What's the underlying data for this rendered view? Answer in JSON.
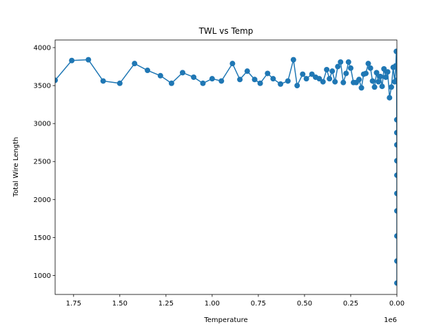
{
  "chart_data": {
    "type": "line",
    "title": "TWL vs Temp",
    "xlabel": "Temperature",
    "ylabel": "Total Wire Length",
    "x_offset_text": "1e6",
    "x_reversed": true,
    "xlim": [
      1850000,
      0
    ],
    "ylim": [
      750,
      4100
    ],
    "x_ticks": [
      1750000,
      1500000,
      1250000,
      1000000,
      750000,
      500000,
      250000,
      0
    ],
    "x_tick_labels": [
      "1.75",
      "1.50",
      "1.25",
      "1.00",
      "0.75",
      "0.50",
      "0.25",
      "0.00"
    ],
    "y_ticks": [
      1000,
      1500,
      2000,
      2500,
      3000,
      3500,
      4000
    ],
    "y_tick_labels": [
      "1000",
      "1500",
      "2000",
      "2500",
      "3000",
      "3500",
      "4000"
    ],
    "grid": false,
    "colors": {
      "series": "#1f77b4"
    },
    "series": [
      {
        "x": [
          1850000,
          1760000,
          1670000,
          1590000,
          1500000,
          1420000,
          1350000,
          1280000,
          1220000,
          1160000,
          1100000,
          1050000,
          1000000,
          950000,
          890000,
          850000,
          810000,
          770000,
          740000,
          700000,
          670000,
          630000,
          590000,
          560000,
          540000,
          510000,
          490000,
          460000,
          440000,
          420000,
          400000,
          380000,
          365000,
          350000,
          335000,
          320000,
          305000,
          290000,
          275000,
          262000,
          250000,
          235000,
          220000,
          205000,
          192000,
          180000,
          168000,
          155000,
          143000,
          132000,
          121000,
          110000,
          100000,
          90000,
          80000,
          70000,
          60000,
          50000,
          40000,
          30000,
          20000,
          12000,
          6000,
          3000,
          1500,
          800,
          400,
          200,
          100,
          50,
          20,
          10,
          5,
          2,
          1
        ],
        "y": [
          3570,
          3830,
          3840,
          3560,
          3530,
          3790,
          3700,
          3630,
          3530,
          3670,
          3610,
          3530,
          3590,
          3560,
          3790,
          3580,
          3690,
          3580,
          3530,
          3660,
          3590,
          3520,
          3560,
          3840,
          3500,
          3650,
          3590,
          3650,
          3610,
          3590,
          3550,
          3710,
          3590,
          3690,
          3550,
          3750,
          3810,
          3540,
          3660,
          3810,
          3730,
          3540,
          3540,
          3580,
          3470,
          3650,
          3660,
          3790,
          3730,
          3560,
          3480,
          3670,
          3550,
          3620,
          3490,
          3720,
          3610,
          3680,
          3340,
          3480,
          3740,
          3550,
          3760,
          3950,
          3570,
          3050,
          2880,
          2720,
          2510,
          2320,
          2080,
          1850,
          1520,
          1190,
          900
        ]
      }
    ]
  }
}
